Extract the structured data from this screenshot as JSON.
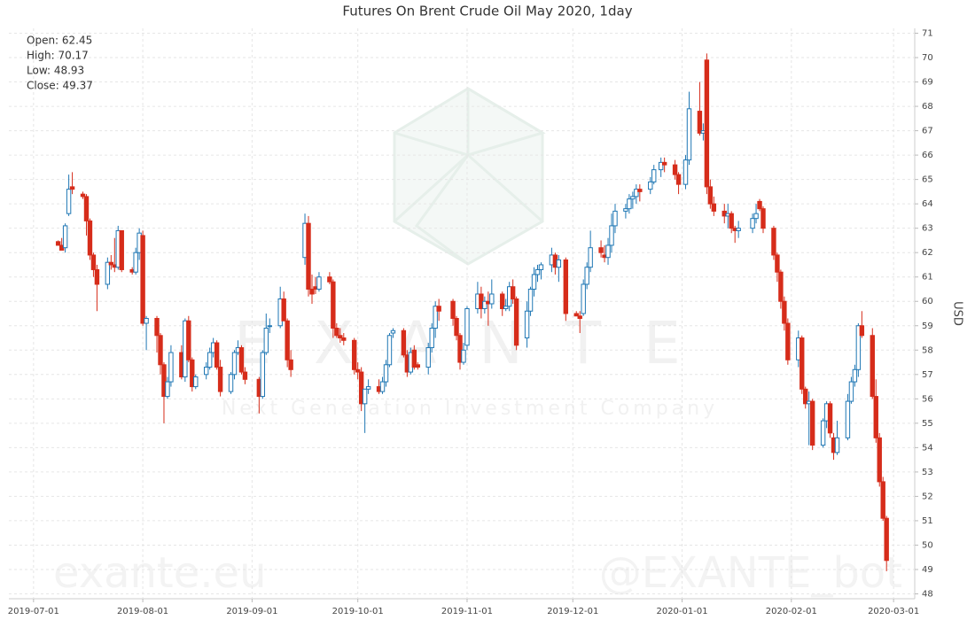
{
  "chart_data": {
    "type": "candlestick",
    "title": "Futures On Brent Crude Oil May 2020, 1day",
    "y_label": "USD",
    "info": [
      "Open: 62.45",
      "High: 70.17",
      "Low: 48.93",
      "Close: 49.37"
    ],
    "watermarks": [
      "EXANTE",
      "Next Generation Investment Company",
      "exante.eu",
      "@EXANTE_bot"
    ],
    "increasing_color": "#1f77b4",
    "decreasing_color": "#d62c1a",
    "grid": true,
    "xlim": [
      "2019-06-24",
      "2020-03-07"
    ],
    "xticks": [
      "2019-07-01",
      "2019-08-01",
      "2019-09-01",
      "2019-10-01",
      "2019-11-01",
      "2019-12-01",
      "2020-01-01",
      "2020-02-01",
      "2020-03-01"
    ],
    "ylim": [
      47.8,
      71.2
    ],
    "yticks": [
      48,
      49,
      50,
      51,
      52,
      53,
      54,
      55,
      56,
      57,
      58,
      59,
      60,
      61,
      62,
      63,
      64,
      65,
      66,
      67,
      68,
      69,
      70,
      71
    ],
    "x": [
      "2019-07-08",
      "2019-07-09",
      "2019-07-10",
      "2019-07-11",
      "2019-07-12",
      "2019-07-15",
      "2019-07-16",
      "2019-07-17",
      "2019-07-18",
      "2019-07-19",
      "2019-07-22",
      "2019-07-23",
      "2019-07-24",
      "2019-07-25",
      "2019-07-26",
      "2019-07-29",
      "2019-07-30",
      "2019-07-31",
      "2019-08-01",
      "2019-08-02",
      "2019-08-05",
      "2019-08-06",
      "2019-08-07",
      "2019-08-08",
      "2019-08-09",
      "2019-08-12",
      "2019-08-13",
      "2019-08-14",
      "2019-08-15",
      "2019-08-16",
      "2019-08-19",
      "2019-08-20",
      "2019-08-21",
      "2019-08-22",
      "2019-08-23",
      "2019-08-26",
      "2019-08-27",
      "2019-08-28",
      "2019-08-29",
      "2019-08-30",
      "2019-09-03",
      "2019-09-04",
      "2019-09-05",
      "2019-09-06",
      "2019-09-09",
      "2019-09-10",
      "2019-09-11",
      "2019-09-12",
      "2019-09-16",
      "2019-09-17",
      "2019-09-18",
      "2019-09-19",
      "2019-09-20",
      "2019-09-23",
      "2019-09-24",
      "2019-09-25",
      "2019-09-26",
      "2019-09-27",
      "2019-09-30",
      "2019-10-01",
      "2019-10-02",
      "2019-10-03",
      "2019-10-04",
      "2019-10-07",
      "2019-10-08",
      "2019-10-09",
      "2019-10-10",
      "2019-10-11",
      "2019-10-14",
      "2019-10-15",
      "2019-10-16",
      "2019-10-17",
      "2019-10-18",
      "2019-10-21",
      "2019-10-22",
      "2019-10-23",
      "2019-10-24",
      "2019-10-28",
      "2019-10-29",
      "2019-10-30",
      "2019-10-31",
      "2019-11-01",
      "2019-11-04",
      "2019-11-05",
      "2019-11-06",
      "2019-11-07",
      "2019-11-08",
      "2019-11-11",
      "2019-11-12",
      "2019-11-13",
      "2019-11-14",
      "2019-11-15",
      "2019-11-18",
      "2019-11-19",
      "2019-11-20",
      "2019-11-21",
      "2019-11-22",
      "2019-11-25",
      "2019-11-26",
      "2019-11-27",
      "2019-11-29",
      "2019-12-02",
      "2019-12-03",
      "2019-12-04",
      "2019-12-05",
      "2019-12-06",
      "2019-12-09",
      "2019-12-10",
      "2019-12-11",
      "2019-12-12",
      "2019-12-13",
      "2019-12-16",
      "2019-12-17",
      "2019-12-18",
      "2019-12-19",
      "2019-12-20",
      "2019-12-23",
      "2019-12-24",
      "2019-12-26",
      "2019-12-27",
      "2019-12-30",
      "2019-12-31",
      "2020-01-02",
      "2020-01-03",
      "2020-01-06",
      "2020-01-07",
      "2020-01-08",
      "2020-01-09",
      "2020-01-10",
      "2020-01-13",
      "2020-01-14",
      "2020-01-15",
      "2020-01-16",
      "2020-01-17",
      "2020-01-21",
      "2020-01-22",
      "2020-01-23",
      "2020-01-24",
      "2020-01-27",
      "2020-01-28",
      "2020-01-29",
      "2020-01-30",
      "2020-01-31",
      "2020-02-03",
      "2020-02-04",
      "2020-02-05",
      "2020-02-06",
      "2020-02-07",
      "2020-02-10",
      "2020-02-11",
      "2020-02-12",
      "2020-02-13",
      "2020-02-14",
      "2020-02-17",
      "2020-02-18",
      "2020-02-19",
      "2020-02-20",
      "2020-02-21",
      "2020-02-24",
      "2020-02-25",
      "2020-02-26",
      "2020-02-27",
      "2020-02-28"
    ],
    "ohlc": [
      [
        62.45,
        62.5,
        62.3,
        62.3
      ],
      [
        62.3,
        62.6,
        62.1,
        62.1
      ],
      [
        62.2,
        63.2,
        62.0,
        63.1
      ],
      [
        63.6,
        65.2,
        63.5,
        64.6
      ],
      [
        64.7,
        65.3,
        64.4,
        64.6
      ],
      [
        64.4,
        64.5,
        64.2,
        64.3
      ],
      [
        64.3,
        64.4,
        62.7,
        63.3
      ],
      [
        63.3,
        63.4,
        61.7,
        61.9
      ],
      [
        61.9,
        62.0,
        61.0,
        61.3
      ],
      [
        61.3,
        61.5,
        59.6,
        60.7
      ],
      [
        60.7,
        61.8,
        60.5,
        61.6
      ],
      [
        61.6,
        61.9,
        61.3,
        61.5
      ],
      [
        61.5,
        62.6,
        61.2,
        61.4
      ],
      [
        61.4,
        63.1,
        61.3,
        62.9
      ],
      [
        62.9,
        62.9,
        61.2,
        61.3
      ],
      [
        61.3,
        61.4,
        61.1,
        61.2
      ],
      [
        61.2,
        62.2,
        61.1,
        62.0
      ],
      [
        62.0,
        63.0,
        61.7,
        62.8
      ],
      [
        62.7,
        62.9,
        59.0,
        59.1
      ],
      [
        59.1,
        59.4,
        58.0,
        59.3
      ],
      [
        59.3,
        59.4,
        57.9,
        58.6
      ],
      [
        58.6,
        58.7,
        57.0,
        57.4
      ],
      [
        57.4,
        57.5,
        55.0,
        56.1
      ],
      [
        56.1,
        56.9,
        56.0,
        56.7
      ],
      [
        56.7,
        58.2,
        56.5,
        57.9
      ],
      [
        57.9,
        58.2,
        56.8,
        56.9
      ],
      [
        56.9,
        59.3,
        56.7,
        59.2
      ],
      [
        59.2,
        59.4,
        57.5,
        57.6
      ],
      [
        57.6,
        57.7,
        56.3,
        56.5
      ],
      [
        56.5,
        57.0,
        56.4,
        56.9
      ],
      [
        57.0,
        57.5,
        56.8,
        57.3
      ],
      [
        57.3,
        58.1,
        57.2,
        57.9
      ],
      [
        57.9,
        58.5,
        57.7,
        58.3
      ],
      [
        58.3,
        58.4,
        57.2,
        57.3
      ],
      [
        57.3,
        57.6,
        56.1,
        56.3
      ],
      [
        56.3,
        57.1,
        56.2,
        57.0
      ],
      [
        57.0,
        58.0,
        56.8,
        57.9
      ],
      [
        57.9,
        58.4,
        57.8,
        58.1
      ],
      [
        58.1,
        58.2,
        57.0,
        57.1
      ],
      [
        57.1,
        57.3,
        56.6,
        56.8
      ],
      [
        56.8,
        56.9,
        55.4,
        56.1
      ],
      [
        56.1,
        58.0,
        56.0,
        57.9
      ],
      [
        57.9,
        59.5,
        57.8,
        58.9
      ],
      [
        59.0,
        59.3,
        58.7,
        59.0
      ],
      [
        59.0,
        60.6,
        58.9,
        60.1
      ],
      [
        60.1,
        60.4,
        59.2,
        59.2
      ],
      [
        59.2,
        59.3,
        57.3,
        57.6
      ],
      [
        57.6,
        58.0,
        56.9,
        57.2
      ],
      [
        61.8,
        63.6,
        61.5,
        63.2
      ],
      [
        63.2,
        63.5,
        60.2,
        60.5
      ],
      [
        60.5,
        61.1,
        59.9,
        60.3
      ],
      [
        60.6,
        61.0,
        60.3,
        60.5
      ],
      [
        60.5,
        61.2,
        60.4,
        61.0
      ],
      [
        61.0,
        61.2,
        60.7,
        60.8
      ],
      [
        60.8,
        60.9,
        58.5,
        58.9
      ],
      [
        58.9,
        59.1,
        58.5,
        58.6
      ],
      [
        58.6,
        58.9,
        58.3,
        58.5
      ],
      [
        58.5,
        58.7,
        58.2,
        58.4
      ],
      [
        58.4,
        58.5,
        57.0,
        57.2
      ],
      [
        57.2,
        57.5,
        56.8,
        57.1
      ],
      [
        57.1,
        57.3,
        55.5,
        55.8
      ],
      [
        55.8,
        56.4,
        54.6,
        56.4
      ],
      [
        56.4,
        56.8,
        56.2,
        56.5
      ],
      [
        56.5,
        56.8,
        56.2,
        56.3
      ],
      [
        56.3,
        56.9,
        56.2,
        56.7
      ],
      [
        56.7,
        57.6,
        56.5,
        57.4
      ],
      [
        57.4,
        58.7,
        57.3,
        58.6
      ],
      [
        58.7,
        58.9,
        58.5,
        58.8
      ],
      [
        58.8,
        58.9,
        57.7,
        57.8
      ],
      [
        57.8,
        58.0,
        56.9,
        57.1
      ],
      [
        57.1,
        58.1,
        57.0,
        57.9
      ],
      [
        58.0,
        58.2,
        57.2,
        57.3
      ],
      [
        57.4,
        57.5,
        57.2,
        57.3
      ],
      [
        57.3,
        58.3,
        57.0,
        58.1
      ],
      [
        58.1,
        59.1,
        57.9,
        58.9
      ],
      [
        58.9,
        60.0,
        58.5,
        59.8
      ],
      [
        59.8,
        60.1,
        59.2,
        59.6
      ],
      [
        60.0,
        60.1,
        59.0,
        59.3
      ],
      [
        59.3,
        59.4,
        58.4,
        58.6
      ],
      [
        58.6,
        58.7,
        57.2,
        57.5
      ],
      [
        57.5,
        58.3,
        57.4,
        58.0
      ],
      [
        58.2,
        59.8,
        58.0,
        59.7
      ],
      [
        59.7,
        60.8,
        59.5,
        60.3
      ],
      [
        60.3,
        60.6,
        59.3,
        59.7
      ],
      [
        59.7,
        60.2,
        59.5,
        60.0
      ],
      [
        60.0,
        60.4,
        59.0,
        59.9
      ],
      [
        59.9,
        60.9,
        59.7,
        60.3
      ],
      [
        60.3,
        60.4,
        59.4,
        59.7
      ],
      [
        59.7,
        60.1,
        59.6,
        59.8
      ],
      [
        59.8,
        60.8,
        59.6,
        60.6
      ],
      [
        60.6,
        60.9,
        59.9,
        60.1
      ],
      [
        60.1,
        60.2,
        58.0,
        58.2
      ],
      [
        58.5,
        60.0,
        58.1,
        59.6
      ],
      [
        59.6,
        60.6,
        59.4,
        60.5
      ],
      [
        60.5,
        61.4,
        60.2,
        61.1
      ],
      [
        61.1,
        61.5,
        60.8,
        61.3
      ],
      [
        61.3,
        61.6,
        60.9,
        61.5
      ],
      [
        61.5,
        62.2,
        61.2,
        61.9
      ],
      [
        61.9,
        62.0,
        61.1,
        61.4
      ],
      [
        61.4,
        61.9,
        60.8,
        61.7
      ],
      [
        61.7,
        61.8,
        59.2,
        59.5
      ],
      [
        59.5,
        59.6,
        59.4,
        59.4
      ],
      [
        59.4,
        59.6,
        58.7,
        59.3
      ],
      [
        59.5,
        60.9,
        59.4,
        60.7
      ],
      [
        60.7,
        61.6,
        60.5,
        61.4
      ],
      [
        61.4,
        62.9,
        61.2,
        62.2
      ],
      [
        62.2,
        62.5,
        61.8,
        62.0
      ],
      [
        61.9,
        62.3,
        61.6,
        61.8
      ],
      [
        61.8,
        62.6,
        61.5,
        62.3
      ],
      [
        62.3,
        63.6,
        62.0,
        63.1
      ],
      [
        63.1,
        64.0,
        62.8,
        63.7
      ],
      [
        63.7,
        64.0,
        63.4,
        63.8
      ],
      [
        63.8,
        64.4,
        63.6,
        64.2
      ],
      [
        64.2,
        64.5,
        63.8,
        64.3
      ],
      [
        64.3,
        64.8,
        64.0,
        64.6
      ],
      [
        64.6,
        64.8,
        64.1,
        64.5
      ],
      [
        64.6,
        65.1,
        64.4,
        64.9
      ],
      [
        64.9,
        65.6,
        64.8,
        65.4
      ],
      [
        65.4,
        65.9,
        65.1,
        65.7
      ],
      [
        65.7,
        65.9,
        65.3,
        65.6
      ],
      [
        65.6,
        65.8,
        65.0,
        65.2
      ],
      [
        65.2,
        65.3,
        64.4,
        64.8
      ],
      [
        64.8,
        66.0,
        64.6,
        65.8
      ],
      [
        65.8,
        68.6,
        65.6,
        67.9
      ],
      [
        67.8,
        69.0,
        66.8,
        66.9
      ],
      [
        66.9,
        67.3,
        66.6,
        67.0
      ],
      [
        69.9,
        70.17,
        64.4,
        64.7
      ],
      [
        64.7,
        65.0,
        63.8,
        64.0
      ],
      [
        64.0,
        64.3,
        63.5,
        63.7
      ],
      [
        63.7,
        64.0,
        63.2,
        63.5
      ],
      [
        63.5,
        64.0,
        63.0,
        63.6
      ],
      [
        63.6,
        63.7,
        62.8,
        63.0
      ],
      [
        63.0,
        63.1,
        62.4,
        62.9
      ],
      [
        62.9,
        63.3,
        62.6,
        63.0
      ],
      [
        63.0,
        63.6,
        62.8,
        63.4
      ],
      [
        63.4,
        64.0,
        63.2,
        63.6
      ],
      [
        64.1,
        64.2,
        63.7,
        63.8
      ],
      [
        63.8,
        63.9,
        62.8,
        63.0
      ],
      [
        63.0,
        63.1,
        61.7,
        61.9
      ],
      [
        61.9,
        62.0,
        60.8,
        61.2
      ],
      [
        61.2,
        61.3,
        59.7,
        60.0
      ],
      [
        60.0,
        60.2,
        58.8,
        59.1
      ],
      [
        59.1,
        59.3,
        57.4,
        57.6
      ],
      [
        57.6,
        58.8,
        57.3,
        58.5
      ],
      [
        58.5,
        58.6,
        56.2,
        56.4
      ],
      [
        56.4,
        56.5,
        55.6,
        55.8
      ],
      [
        55.8,
        56.3,
        54.1,
        55.9
      ],
      [
        55.9,
        56.0,
        53.9,
        54.1
      ],
      [
        54.1,
        55.2,
        54.0,
        55.1
      ],
      [
        55.1,
        55.9,
        54.8,
        55.8
      ],
      [
        55.8,
        55.9,
        54.4,
        54.6
      ],
      [
        54.4,
        54.6,
        53.5,
        53.8
      ],
      [
        53.8,
        55.1,
        53.7,
        54.4
      ],
      [
        54.4,
        56.2,
        54.3,
        55.9
      ],
      [
        55.9,
        56.9,
        55.8,
        56.7
      ],
      [
        56.7,
        57.4,
        56.5,
        57.2
      ],
      [
        57.2,
        59.1,
        56.9,
        59.0
      ],
      [
        59.0,
        59.6,
        58.5,
        58.6
      ],
      [
        58.6,
        58.9,
        56.0,
        56.1
      ],
      [
        56.1,
        56.8,
        54.2,
        54.4
      ],
      [
        54.4,
        54.6,
        52.4,
        52.6
      ],
      [
        52.6,
        52.8,
        51.0,
        51.1
      ],
      [
        51.1,
        51.2,
        48.93,
        49.37
      ]
    ]
  }
}
